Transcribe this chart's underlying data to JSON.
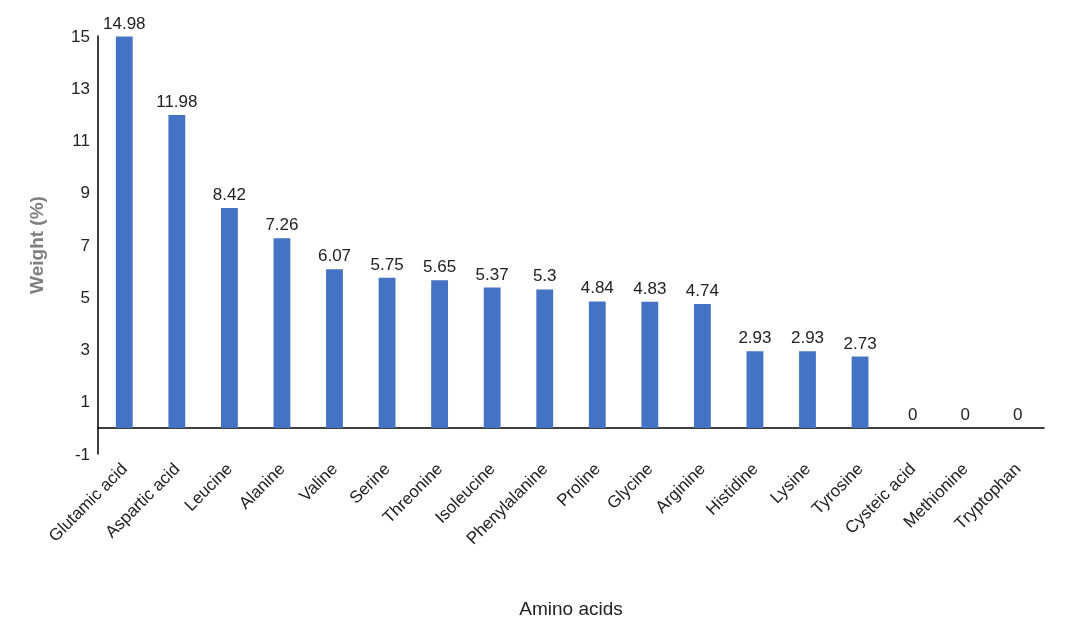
{
  "chart_data": {
    "type": "bar",
    "xlabel": "Amino acids",
    "ylabel": "Weight (%)",
    "categories": [
      "Glutamic acid",
      "Aspartic acid",
      "Leucine",
      "Alanine",
      "Valine",
      "Serine",
      "Threonine",
      "Isoleucine",
      "Phenylalanine",
      "Proline",
      "Glycine",
      "Arginine",
      "Histidine",
      "Lysine",
      "Tyrosine",
      "Cysteic acid",
      "Methionine",
      "Tryptophan"
    ],
    "values": [
      14.98,
      11.98,
      8.42,
      7.26,
      6.07,
      5.75,
      5.65,
      5.37,
      5.3,
      4.84,
      4.83,
      4.74,
      2.93,
      2.93,
      2.73,
      0,
      0,
      0
    ],
    "color": "#4472c4",
    "ylim": [
      -1,
      15
    ],
    "yticks": [
      -1,
      1,
      3,
      5,
      7,
      9,
      11,
      13,
      15
    ],
    "grid": false,
    "data_labels": true
  }
}
